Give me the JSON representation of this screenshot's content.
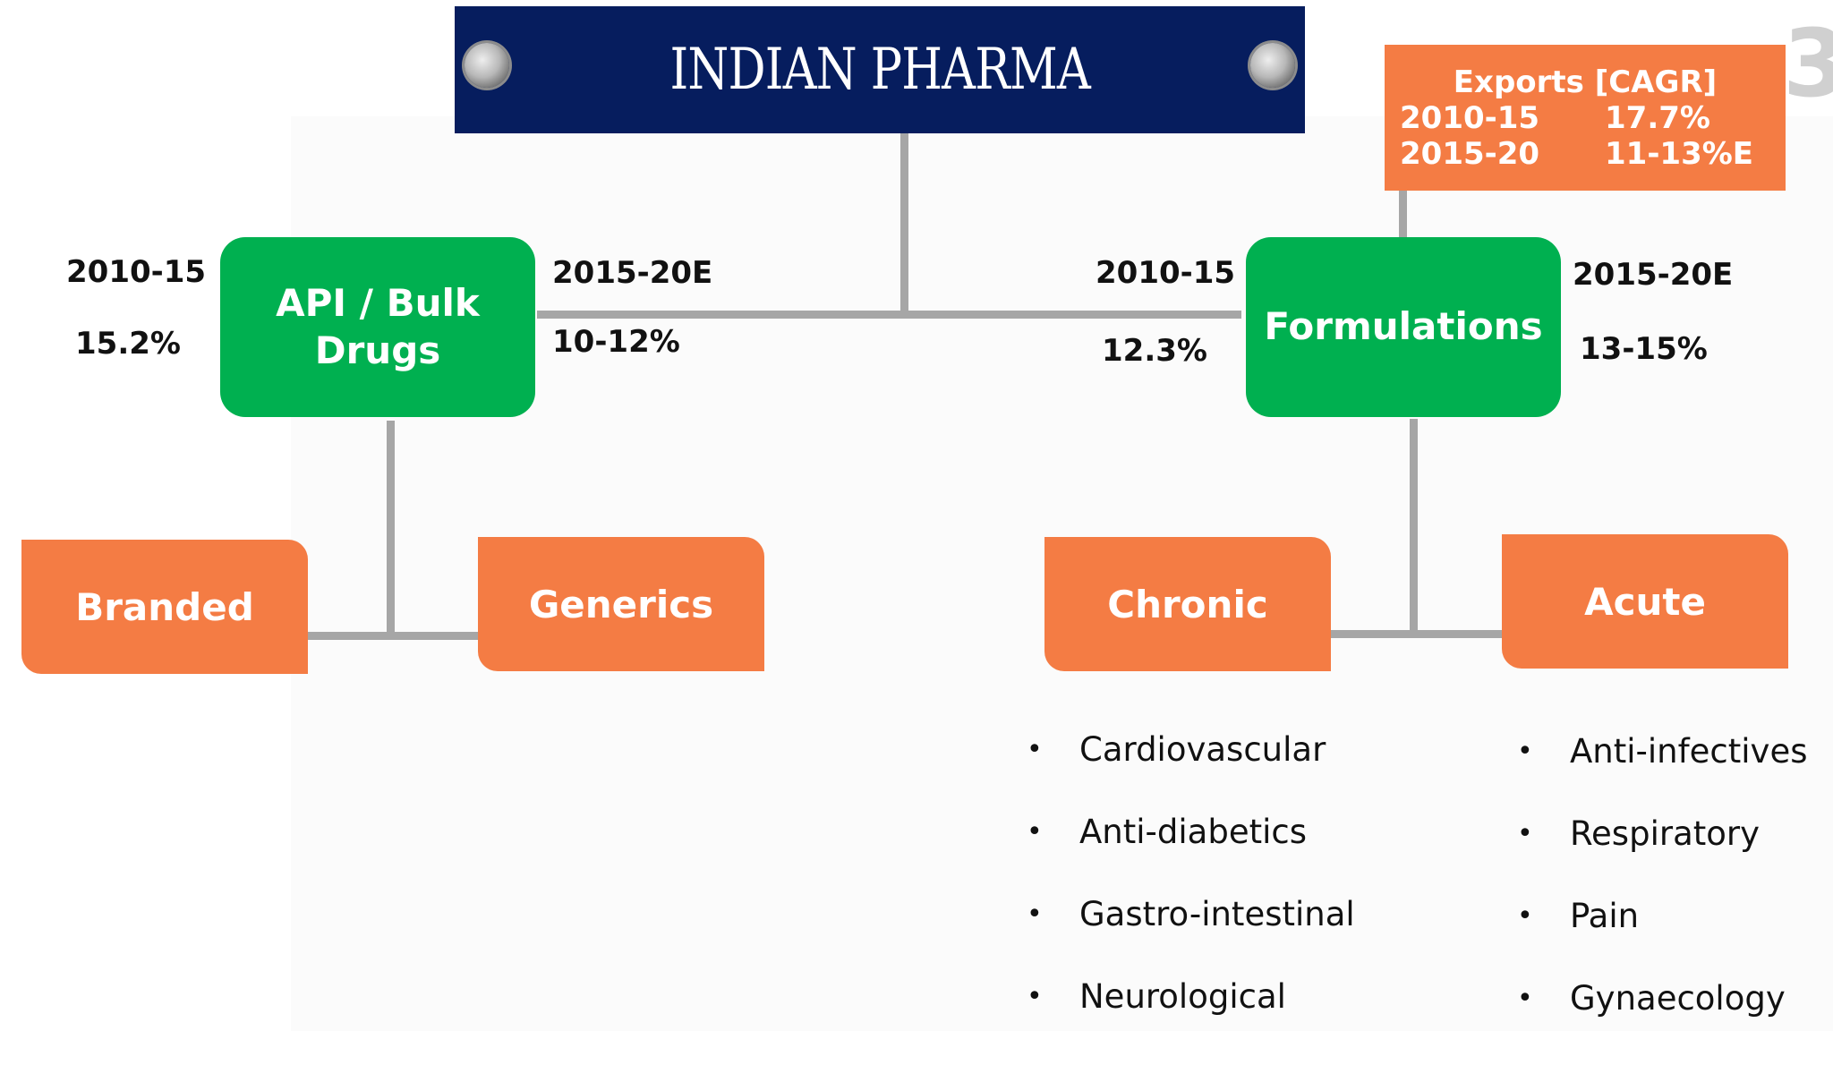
{
  "title": "INDIAN PHARMA",
  "page_number": "3",
  "api": {
    "label_line1": "API / Bulk",
    "label_line2": "Drugs",
    "left_period": "2010-15",
    "left_growth": "15.2%",
    "right_period": "2015-20E",
    "right_growth": "10-12%"
  },
  "formulations": {
    "label": "Formulations",
    "left_period": "2010-15",
    "left_growth": "12.3%",
    "right_period": "2015-20E",
    "right_growth": "13-15%"
  },
  "exports": {
    "header": "Exports [CAGR]",
    "rows": [
      {
        "period": "2010-15",
        "value": "17.7%"
      },
      {
        "period": "2015-20",
        "value": "11-13%E"
      }
    ]
  },
  "segments": {
    "branded": "Branded",
    "generics": "Generics",
    "chronic": "Chronic",
    "acute": "Acute"
  },
  "chronic_items": [
    "Cardiovascular",
    "Anti-diabetics",
    "Gastro-intestinal",
    "Neurological"
  ],
  "acute_items": [
    "Anti-infectives",
    "Respiratory",
    "Pain",
    "Gynaecology"
  ],
  "bullet_char": "•",
  "colors": {
    "title_bg": "#061d5e",
    "green": "#00b050",
    "orange": "#f47c44",
    "connector": "#a6a6a6"
  }
}
